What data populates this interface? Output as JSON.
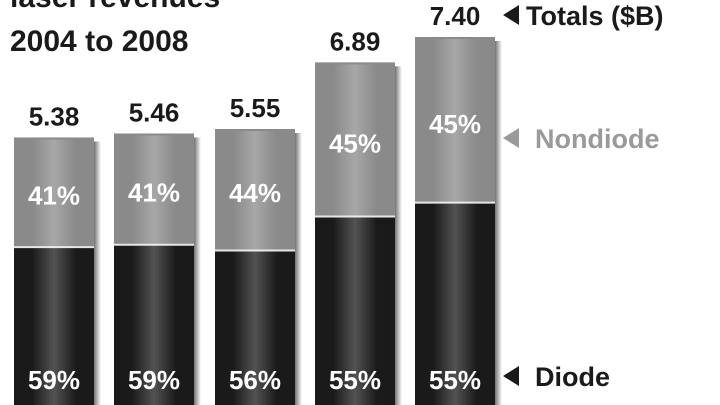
{
  "chart_data": {
    "type": "bar",
    "title_lines": [
      "laser revenues",
      "2004 to 2008"
    ],
    "categories": [
      "",
      "",
      "",
      "",
      ""
    ],
    "totals": [
      "5.38",
      "5.46",
      "5.55",
      "6.89",
      "7.40"
    ],
    "totals_label": "Totals ($B)",
    "ylim": [
      0,
      7.4
    ],
    "stacked": true,
    "series": [
      {
        "name": "Diode",
        "color": "#1a1a1a",
        "percent_labels": [
          "59%",
          "59%",
          "56%",
          "55%",
          "55%"
        ],
        "shares": [
          0.59,
          0.59,
          0.56,
          0.55,
          0.55
        ]
      },
      {
        "name": "Nondiode",
        "color": "#8a8a8a",
        "percent_labels": [
          "41%",
          "41%",
          "44%",
          "45%",
          "45%"
        ],
        "shares": [
          0.41,
          0.41,
          0.44,
          0.45,
          0.45
        ]
      }
    ],
    "legend_placement": "right",
    "legend_color": "#9a9a9a",
    "grid": false
  }
}
